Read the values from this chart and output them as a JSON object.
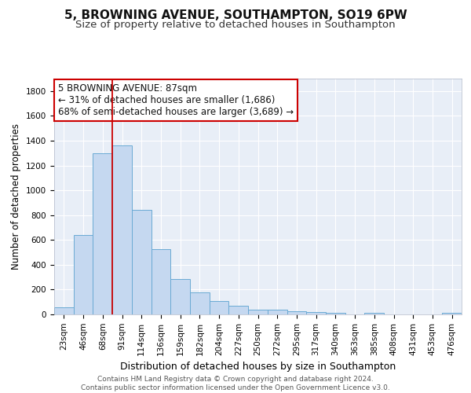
{
  "title_line1": "5, BROWNING AVENUE, SOUTHAMPTON, SO19 6PW",
  "title_line2": "Size of property relative to detached houses in Southampton",
  "xlabel": "Distribution of detached houses by size in Southampton",
  "ylabel": "Number of detached properties",
  "categories": [
    "23sqm",
    "46sqm",
    "68sqm",
    "91sqm",
    "114sqm",
    "136sqm",
    "159sqm",
    "182sqm",
    "204sqm",
    "227sqm",
    "250sqm",
    "272sqm",
    "295sqm",
    "317sqm",
    "340sqm",
    "363sqm",
    "385sqm",
    "408sqm",
    "431sqm",
    "453sqm",
    "476sqm"
  ],
  "values": [
    55,
    640,
    1300,
    1360,
    840,
    525,
    285,
    175,
    110,
    70,
    35,
    40,
    25,
    20,
    15,
    0,
    10,
    0,
    0,
    0,
    15
  ],
  "bar_color": "#c5d8f0",
  "bar_edge_color": "#6aaad4",
  "background_color": "#e8eef7",
  "grid_color": "#ffffff",
  "vline_x_index": 3,
  "vline_color": "#cc0000",
  "annotation_line1": "5 BROWNING AVENUE: 87sqm",
  "annotation_line2": "← 31% of detached houses are smaller (1,686)",
  "annotation_line3": "68% of semi-detached houses are larger (3,689) →",
  "annotation_box_color": "#cc0000",
  "annotation_box_fill": "#ffffff",
  "ylim": [
    0,
    1900
  ],
  "yticks": [
    0,
    200,
    400,
    600,
    800,
    1000,
    1200,
    1400,
    1600,
    1800
  ],
  "footer_text": "Contains HM Land Registry data © Crown copyright and database right 2024.\nContains public sector information licensed under the Open Government Licence v3.0.",
  "title_fontsize": 11,
  "subtitle_fontsize": 9.5,
  "xlabel_fontsize": 9,
  "ylabel_fontsize": 8.5,
  "tick_fontsize": 7.5,
  "annotation_fontsize": 8.5,
  "footer_fontsize": 6.5
}
